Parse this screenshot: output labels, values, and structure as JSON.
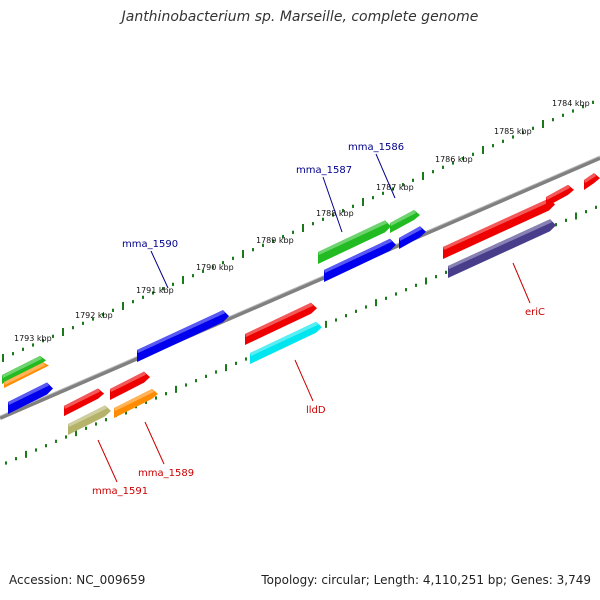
{
  "title": "Janthinobacterium sp. Marseille, complete genome",
  "footer": {
    "accession": "Accession: NC_009659",
    "summary": "Topology: circular; Length: 4,110,251 bp; Genes: 3,749"
  },
  "colors": {
    "backbone": "#808080",
    "tick_forward": "#1a7a1a",
    "tick_reverse": "#1a7a1a",
    "label_forward": "#00008b",
    "label_reverse": "#cc0000"
  },
  "ticks": [
    {
      "label": "1784 kbp"
    },
    {
      "label": "1785 kbp"
    },
    {
      "label": "1786 kbp"
    },
    {
      "label": "1787 kbp"
    },
    {
      "label": "1788 kbp"
    },
    {
      "label": "1789 kbp"
    },
    {
      "label": "1790 kbp"
    },
    {
      "label": "1791 kbp"
    },
    {
      "label": "1792 kbp"
    },
    {
      "label": "1793 kbp"
    }
  ],
  "gene_labels": [
    {
      "text": "mma_1586",
      "strand": "forward"
    },
    {
      "text": "mma_1587",
      "strand": "forward"
    },
    {
      "text": "mma_1590",
      "strand": "forward"
    },
    {
      "text": "eriC",
      "strand": "reverse"
    },
    {
      "text": "lldD",
      "strand": "reverse"
    },
    {
      "text": "mma_1589",
      "strand": "reverse"
    },
    {
      "text": "mma_1591",
      "strand": "reverse"
    }
  ],
  "features": [
    {
      "color": "#22bb22"
    },
    {
      "color": "#0000ee"
    },
    {
      "color": "#22bb22"
    },
    {
      "color": "#0000ee"
    },
    {
      "color": "#0000ee"
    },
    {
      "color": "#22bb22"
    },
    {
      "color": "#ff8c00"
    },
    {
      "color": "#0000ee"
    },
    {
      "color": "#ee0000"
    },
    {
      "color": "#ee0000"
    },
    {
      "color": "#ee0000"
    },
    {
      "color": "#ee0000"
    },
    {
      "color": "#483d8b"
    },
    {
      "color": "#ee0000"
    },
    {
      "color": "#00e5ee"
    },
    {
      "color": "#ee0000"
    },
    {
      "color": "#ee0000"
    },
    {
      "color": "#b5b36a"
    },
    {
      "color": "#ff8c00"
    }
  ]
}
